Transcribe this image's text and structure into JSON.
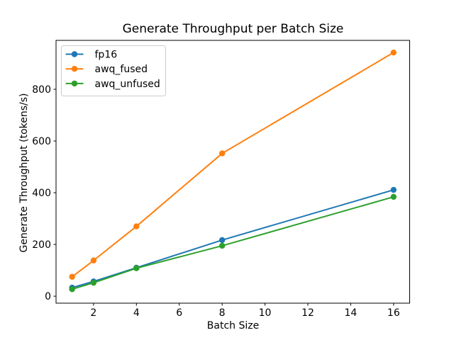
{
  "chart_data": {
    "type": "line",
    "title": "Generate Throughput per Batch Size",
    "xlabel": "Batch Size",
    "ylabel": "Generate Throughput (tokens/s)",
    "x": [
      1,
      2,
      4,
      8,
      16
    ],
    "series": [
      {
        "name": "fp16",
        "color": "#1f77b4",
        "values": [
          33,
          57,
          110,
          217,
          411
        ]
      },
      {
        "name": "awq_fused",
        "color": "#ff7f0e",
        "values": [
          75,
          138,
          270,
          552,
          942
        ]
      },
      {
        "name": "awq_unfused",
        "color": "#2ca02c",
        "values": [
          27,
          52,
          108,
          195,
          384
        ]
      }
    ],
    "xticks": [
      2,
      4,
      6,
      8,
      10,
      12,
      14,
      16
    ],
    "yticks": [
      0,
      200,
      400,
      600,
      800
    ],
    "xlim": [
      0.25,
      16.75
    ],
    "ylim": [
      -27,
      989
    ],
    "grid": false,
    "marker": "circle",
    "legend_position": "upper left",
    "legend_entries": [
      "fp16",
      "awq_fused",
      "awq_unfused"
    ],
    "axis_color": "#000000",
    "legend_border_color": "#cccccc",
    "background_color": "#ffffff"
  }
}
